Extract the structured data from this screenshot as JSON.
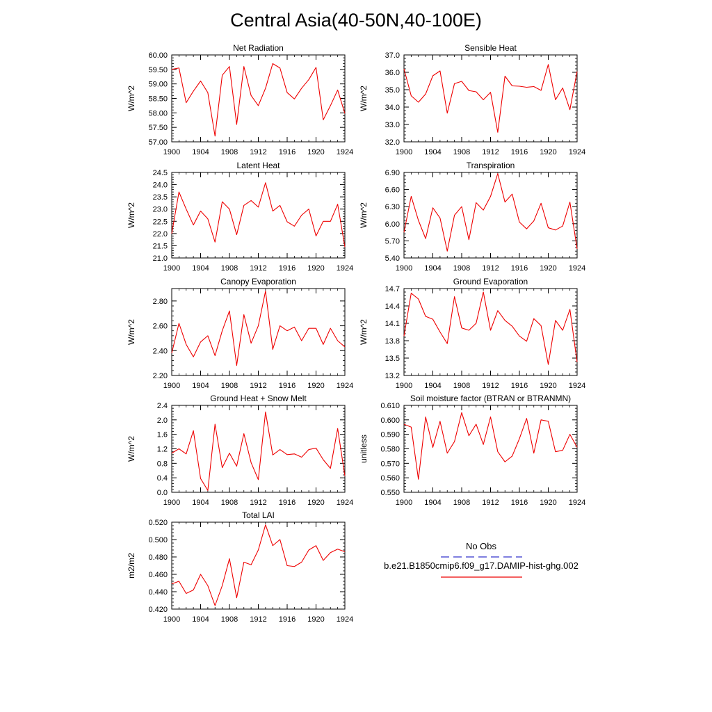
{
  "title": "Central Asia(40-50N,40-100E)",
  "colors": {
    "series": "#ee0000",
    "obs": "#3333cc",
    "axis": "#000000"
  },
  "legend": {
    "obs_label": "No Obs",
    "case_label": "b.e21.B1850cmip6.f09_g17.DAMIP-hist-ghg.002"
  },
  "chart_data": [
    {
      "type": "line",
      "title": "Net Radiation",
      "ylabel": "W/m^2",
      "x": [
        1900,
        1901,
        1902,
        1903,
        1904,
        1905,
        1906,
        1907,
        1908,
        1909,
        1910,
        1911,
        1912,
        1913,
        1914,
        1915,
        1916,
        1917,
        1918,
        1919,
        1920,
        1921,
        1922,
        1923,
        1924
      ],
      "xticks": [
        1900,
        1904,
        1908,
        1912,
        1916,
        1920,
        1924
      ],
      "xlim": [
        1900,
        1924
      ],
      "ylim": [
        57.0,
        60.0
      ],
      "yticks": [
        57.0,
        57.5,
        58.0,
        58.5,
        59.0,
        59.5,
        60.0
      ],
      "ytick_labels": [
        "57.00",
        "57.50",
        "58.00",
        "58.50",
        "59.00",
        "59.50",
        "60.00"
      ],
      "series": [
        {
          "values": [
            59.5,
            59.55,
            58.35,
            58.75,
            59.1,
            58.7,
            57.2,
            59.3,
            59.6,
            57.6,
            59.6,
            58.6,
            58.25,
            58.85,
            59.7,
            59.55,
            58.7,
            58.48,
            58.85,
            59.15,
            59.57,
            57.76,
            58.25,
            58.79,
            57.98
          ]
        }
      ]
    },
    {
      "type": "line",
      "title": "Sensible Heat",
      "ylabel": "W/m^2",
      "x": [
        1900,
        1901,
        1902,
        1903,
        1904,
        1905,
        1906,
        1907,
        1908,
        1909,
        1910,
        1911,
        1912,
        1913,
        1914,
        1915,
        1916,
        1917,
        1918,
        1919,
        1920,
        1921,
        1922,
        1923,
        1924
      ],
      "xticks": [
        1900,
        1904,
        1908,
        1912,
        1916,
        1920,
        1924
      ],
      "xlim": [
        1900,
        1924
      ],
      "ylim": [
        32.0,
        37.0
      ],
      "yticks": [
        32,
        33,
        34,
        35,
        36,
        37
      ],
      "ytick_labels": [
        "32.0",
        "33.0",
        "34.0",
        "35.0",
        "36.0",
        "37.0"
      ],
      "series": [
        {
          "values": [
            36.2,
            34.65,
            34.28,
            34.75,
            35.8,
            36.08,
            33.65,
            35.35,
            35.48,
            34.95,
            34.88,
            34.42,
            34.85,
            32.55,
            35.78,
            35.22,
            35.2,
            35.14,
            35.18,
            34.96,
            36.45,
            34.42,
            35.1,
            33.85,
            36.05
          ]
        }
      ]
    },
    {
      "type": "line",
      "title": "Latent Heat",
      "ylabel": "W/m^2",
      "x": [
        1900,
        1901,
        1902,
        1903,
        1904,
        1905,
        1906,
        1907,
        1908,
        1909,
        1910,
        1911,
        1912,
        1913,
        1914,
        1915,
        1916,
        1917,
        1918,
        1919,
        1920,
        1921,
        1922,
        1923,
        1924
      ],
      "xticks": [
        1900,
        1904,
        1908,
        1912,
        1916,
        1920,
        1924
      ],
      "xlim": [
        1900,
        1924
      ],
      "ylim": [
        21.0,
        24.5
      ],
      "yticks": [
        21.0,
        21.5,
        22.0,
        22.5,
        23.0,
        23.5,
        24.0,
        24.5
      ],
      "ytick_labels": [
        "21.0",
        "21.5",
        "22.0",
        "22.5",
        "23.0",
        "23.5",
        "24.0",
        "24.5"
      ],
      "series": [
        {
          "values": [
            22.0,
            23.7,
            23.0,
            22.35,
            22.92,
            22.6,
            21.65,
            23.3,
            23.0,
            21.95,
            23.15,
            23.35,
            23.08,
            24.08,
            22.92,
            23.15,
            22.48,
            22.3,
            22.75,
            23.0,
            21.9,
            22.5,
            22.5,
            23.2,
            21.45
          ]
        }
      ]
    },
    {
      "type": "line",
      "title": "Transpiration",
      "ylabel": "W/m^2",
      "x": [
        1900,
        1901,
        1902,
        1903,
        1904,
        1905,
        1906,
        1907,
        1908,
        1909,
        1910,
        1911,
        1912,
        1913,
        1914,
        1915,
        1916,
        1917,
        1918,
        1919,
        1920,
        1921,
        1922,
        1923,
        1924
      ],
      "xticks": [
        1900,
        1904,
        1908,
        1912,
        1916,
        1920,
        1924
      ],
      "xlim": [
        1900,
        1924
      ],
      "ylim": [
        5.4,
        6.9
      ],
      "yticks": [
        5.4,
        5.7,
        6.0,
        6.3,
        6.6,
        6.9
      ],
      "ytick_labels": [
        "5.40",
        "5.70",
        "6.00",
        "6.30",
        "6.60",
        "6.90"
      ],
      "series": [
        {
          "values": [
            5.85,
            6.48,
            6.06,
            5.74,
            6.28,
            6.1,
            5.52,
            6.15,
            6.3,
            5.72,
            6.37,
            6.24,
            6.48,
            6.88,
            6.38,
            6.52,
            6.03,
            5.91,
            6.05,
            6.36,
            5.93,
            5.89,
            5.96,
            6.38,
            5.56
          ]
        }
      ]
    },
    {
      "type": "line",
      "title": "Canopy Evaporation",
      "ylabel": "W/m^2",
      "x": [
        1900,
        1901,
        1902,
        1903,
        1904,
        1905,
        1906,
        1907,
        1908,
        1909,
        1910,
        1911,
        1912,
        1913,
        1914,
        1915,
        1916,
        1917,
        1918,
        1919,
        1920,
        1921,
        1922,
        1923,
        1924
      ],
      "xticks": [
        1900,
        1904,
        1908,
        1912,
        1916,
        1920,
        1924
      ],
      "xlim": [
        1900,
        1924
      ],
      "ylim": [
        2.2,
        2.9
      ],
      "yticks": [
        2.2,
        2.4,
        2.6,
        2.8
      ],
      "ytick_labels": [
        "2.20",
        "2.40",
        "2.60",
        "2.80"
      ],
      "series": [
        {
          "values": [
            2.38,
            2.62,
            2.45,
            2.35,
            2.47,
            2.52,
            2.36,
            2.56,
            2.72,
            2.28,
            2.69,
            2.46,
            2.6,
            2.88,
            2.41,
            2.6,
            2.56,
            2.59,
            2.48,
            2.58,
            2.58,
            2.45,
            2.58,
            2.48,
            2.43
          ]
        }
      ]
    },
    {
      "type": "line",
      "title": "Ground Evaporation",
      "ylabel": "W/m^2",
      "x": [
        1900,
        1901,
        1902,
        1903,
        1904,
        1905,
        1906,
        1907,
        1908,
        1909,
        1910,
        1911,
        1912,
        1913,
        1914,
        1915,
        1916,
        1917,
        1918,
        1919,
        1920,
        1921,
        1922,
        1923,
        1924
      ],
      "xticks": [
        1900,
        1904,
        1908,
        1912,
        1916,
        1920,
        1924
      ],
      "xlim": [
        1900,
        1924
      ],
      "ylim": [
        13.2,
        14.7
      ],
      "yticks": [
        13.2,
        13.5,
        13.8,
        14.1,
        14.4,
        14.7
      ],
      "ytick_labels": [
        "13.2",
        "13.5",
        "13.8",
        "14.1",
        "14.4",
        "14.7"
      ],
      "series": [
        {
          "values": [
            13.88,
            14.62,
            14.52,
            14.22,
            14.17,
            13.95,
            13.75,
            14.56,
            14.02,
            13.98,
            14.1,
            14.64,
            13.98,
            14.32,
            14.15,
            14.05,
            13.88,
            13.79,
            14.18,
            14.06,
            13.39,
            14.15,
            13.98,
            14.34,
            13.43
          ]
        }
      ]
    },
    {
      "type": "line",
      "title": "Ground Heat + Snow Melt",
      "ylabel": "W/m^2",
      "x": [
        1900,
        1901,
        1902,
        1903,
        1904,
        1905,
        1906,
        1907,
        1908,
        1909,
        1910,
        1911,
        1912,
        1913,
        1914,
        1915,
        1916,
        1917,
        1918,
        1919,
        1920,
        1921,
        1922,
        1923,
        1924
      ],
      "xticks": [
        1900,
        1904,
        1908,
        1912,
        1916,
        1920,
        1924
      ],
      "xlim": [
        1900,
        1924
      ],
      "ylim": [
        0.0,
        2.4
      ],
      "yticks": [
        0.0,
        0.4,
        0.8,
        1.2,
        1.6,
        2.0,
        2.4
      ],
      "ytick_labels": [
        "0.0",
        "0.4",
        "0.8",
        "1.2",
        "1.6",
        "2.0",
        "2.4"
      ],
      "series": [
        {
          "values": [
            1.08,
            1.2,
            1.06,
            1.7,
            0.38,
            0.05,
            1.88,
            0.68,
            1.08,
            0.72,
            1.62,
            0.82,
            0.35,
            2.22,
            1.03,
            1.18,
            1.04,
            1.06,
            0.97,
            1.18,
            1.22,
            0.9,
            0.66,
            1.76,
            0.45
          ]
        }
      ]
    },
    {
      "type": "line",
      "title": "Soil moisture factor (BTRAN or BTRANMN)",
      "ylabel": "unitless",
      "x": [
        1900,
        1901,
        1902,
        1903,
        1904,
        1905,
        1906,
        1907,
        1908,
        1909,
        1910,
        1911,
        1912,
        1913,
        1914,
        1915,
        1916,
        1917,
        1918,
        1919,
        1920,
        1921,
        1922,
        1923,
        1924
      ],
      "xticks": [
        1900,
        1904,
        1908,
        1912,
        1916,
        1920,
        1924
      ],
      "xlim": [
        1900,
        1924
      ],
      "ylim": [
        0.55,
        0.61
      ],
      "yticks": [
        0.55,
        0.56,
        0.57,
        0.58,
        0.59,
        0.6,
        0.61
      ],
      "ytick_labels": [
        "0.550",
        "0.560",
        "0.570",
        "0.580",
        "0.590",
        "0.600",
        "0.610"
      ],
      "series": [
        {
          "values": [
            0.597,
            0.595,
            0.559,
            0.602,
            0.581,
            0.599,
            0.577,
            0.585,
            0.605,
            0.589,
            0.597,
            0.583,
            0.602,
            0.578,
            0.571,
            0.575,
            0.587,
            0.601,
            0.577,
            0.6,
            0.599,
            0.578,
            0.579,
            0.59,
            0.581
          ]
        }
      ]
    },
    {
      "type": "line",
      "title": "Total LAI",
      "ylabel": "m2/m2",
      "x": [
        1900,
        1901,
        1902,
        1903,
        1904,
        1905,
        1906,
        1907,
        1908,
        1909,
        1910,
        1911,
        1912,
        1913,
        1914,
        1915,
        1916,
        1917,
        1918,
        1919,
        1920,
        1921,
        1922,
        1923,
        1924
      ],
      "xticks": [
        1900,
        1904,
        1908,
        1912,
        1916,
        1920,
        1924
      ],
      "xlim": [
        1900,
        1924
      ],
      "ylim": [
        0.42,
        0.52
      ],
      "yticks": [
        0.42,
        0.44,
        0.46,
        0.48,
        0.5,
        0.52
      ],
      "ytick_labels": [
        "0.420",
        "0.440",
        "0.460",
        "0.480",
        "0.500",
        "0.520"
      ],
      "series": [
        {
          "values": [
            0.449,
            0.452,
            0.438,
            0.442,
            0.46,
            0.447,
            0.424,
            0.447,
            0.478,
            0.433,
            0.474,
            0.471,
            0.488,
            0.517,
            0.493,
            0.5,
            0.47,
            0.469,
            0.474,
            0.488,
            0.493,
            0.476,
            0.485,
            0.489,
            0.486
          ]
        }
      ]
    }
  ]
}
